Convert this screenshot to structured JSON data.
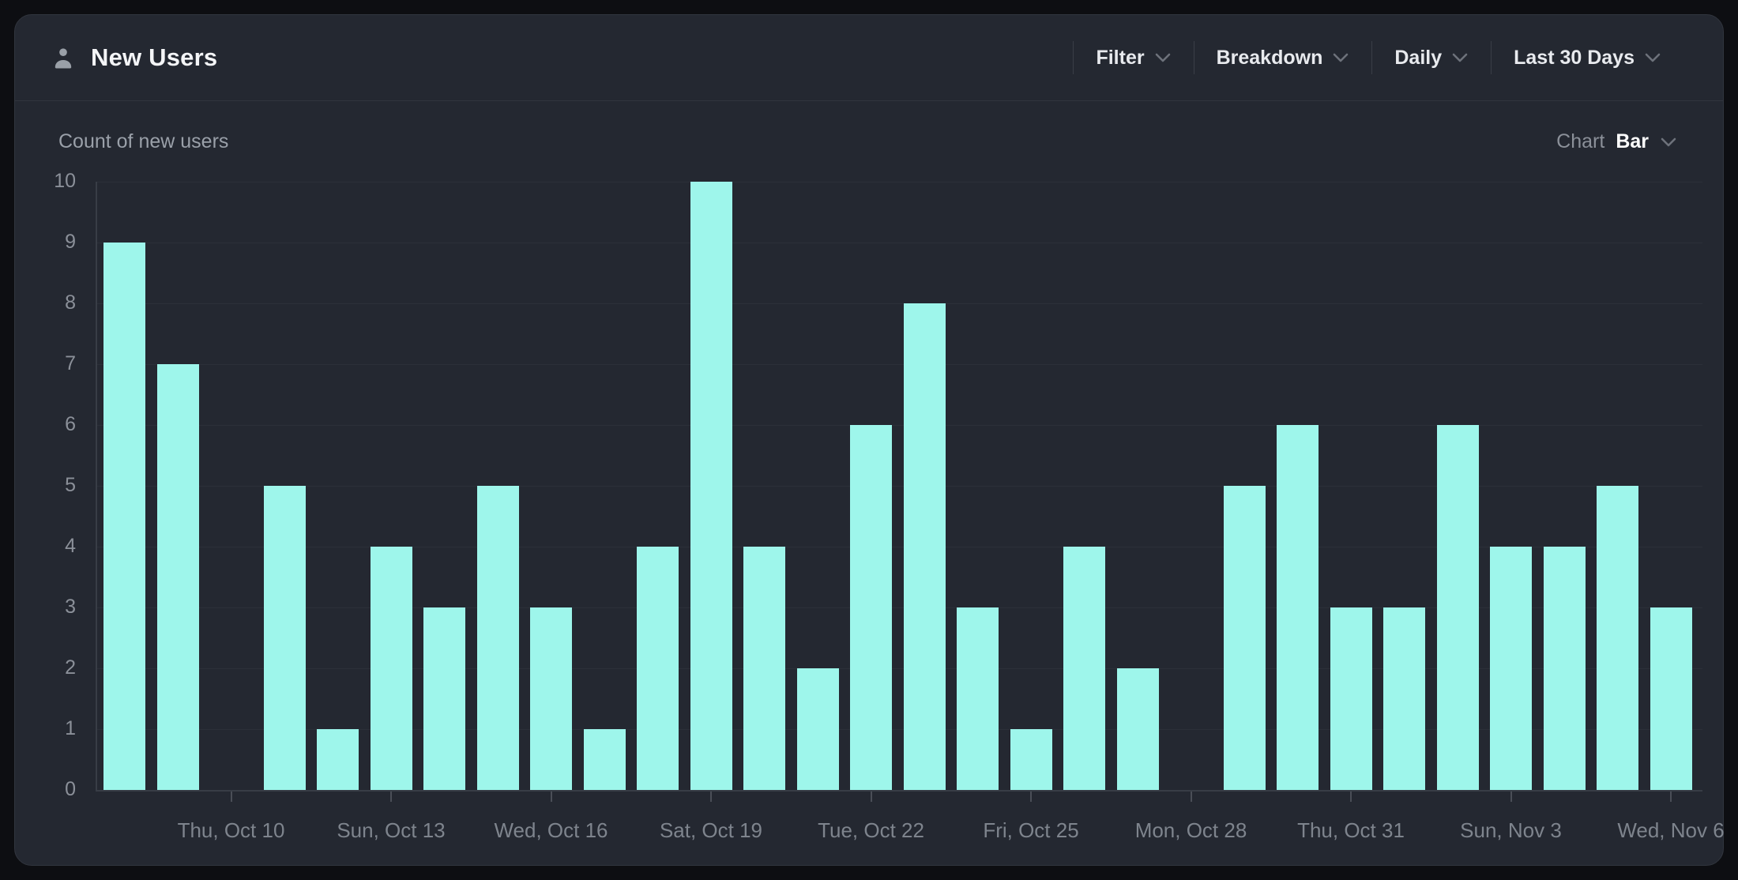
{
  "panel": {
    "title": "New Users",
    "subtitle": "Count of new users",
    "controls": [
      {
        "label": "Filter"
      },
      {
        "label": "Breakdown"
      },
      {
        "label": "Daily"
      },
      {
        "label": "Last 30 Days"
      }
    ],
    "chart_selector": {
      "label": "Chart",
      "value": "Bar"
    }
  },
  "colors": {
    "bar": "#9ef6eb",
    "panel_bg": "#242831",
    "page_bg": "#0d0e12",
    "gridline": "#2c3039",
    "axis": "#383d46",
    "y_label": "#8b9099",
    "x_label": "#7e848d"
  },
  "chart_data": {
    "type": "bar",
    "title": "Count of new users",
    "xlabel": "",
    "ylabel": "Count of new users",
    "ylim": [
      0,
      10
    ],
    "y_ticks": [
      0,
      1,
      2,
      3,
      4,
      5,
      6,
      7,
      8,
      9,
      10
    ],
    "grid": true,
    "legend": false,
    "categories": [
      "Tue, Oct 8",
      "Wed, Oct 9",
      "Thu, Oct 10",
      "Fri, Oct 11",
      "Sat, Oct 12",
      "Sun, Oct 13",
      "Mon, Oct 14",
      "Tue, Oct 15",
      "Wed, Oct 16",
      "Thu, Oct 17",
      "Fri, Oct 18",
      "Sat, Oct 19",
      "Sun, Oct 20",
      "Mon, Oct 21",
      "Tue, Oct 22",
      "Wed, Oct 23",
      "Thu, Oct 24",
      "Fri, Oct 25",
      "Sat, Oct 26",
      "Sun, Oct 27",
      "Mon, Oct 28",
      "Tue, Oct 29",
      "Wed, Oct 30",
      "Thu, Oct 31",
      "Fri, Nov 1",
      "Sat, Nov 2",
      "Sun, Nov 3",
      "Mon, Nov 4",
      "Tue, Nov 5",
      "Wed, Nov 6"
    ],
    "values": [
      9,
      7,
      0,
      5,
      1,
      4,
      3,
      5,
      3,
      1,
      4,
      10,
      4,
      2,
      6,
      8,
      3,
      1,
      4,
      2,
      0,
      5,
      6,
      3,
      3,
      6,
      4,
      4,
      5,
      3
    ],
    "x_ticks": [
      {
        "index": 2,
        "label": "Thu, Oct 10"
      },
      {
        "index": 5,
        "label": "Sun, Oct 13"
      },
      {
        "index": 8,
        "label": "Wed, Oct 16"
      },
      {
        "index": 11,
        "label": "Sat, Oct 19"
      },
      {
        "index": 14,
        "label": "Tue, Oct 22"
      },
      {
        "index": 17,
        "label": "Fri, Oct 25"
      },
      {
        "index": 20,
        "label": "Mon, Oct 28"
      },
      {
        "index": 23,
        "label": "Thu, Oct 31"
      },
      {
        "index": 26,
        "label": "Sun, Nov 3"
      },
      {
        "index": 29,
        "label": "Wed, Nov 6"
      }
    ]
  }
}
